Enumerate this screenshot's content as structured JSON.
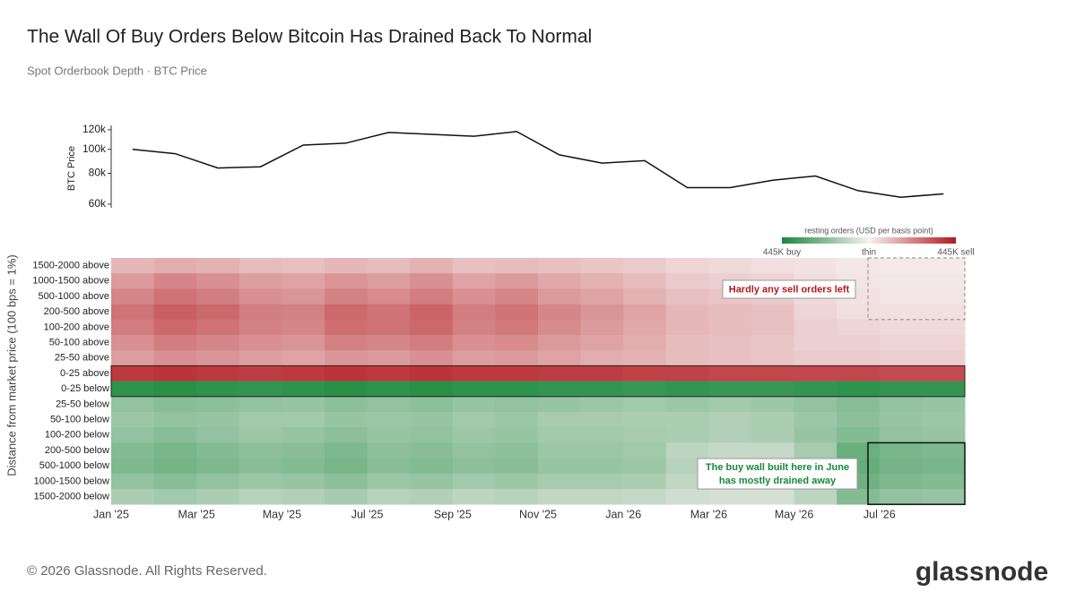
{
  "header": {
    "title": "The Wall Of Buy Orders Below Bitcoin Has Drained Back To Normal",
    "subtitle": "Spot Orderbook Depth · BTC Price"
  },
  "chart_data": [
    {
      "type": "line",
      "ylabel": "BTC Price",
      "color": "#111111",
      "log_scale": true,
      "ylim": [
        58000,
        125000
      ],
      "yticks": [
        {
          "value": 60000,
          "label": "60k"
        },
        {
          "value": 80000,
          "label": "80k"
        },
        {
          "value": 100000,
          "label": "100k"
        },
        {
          "value": 120000,
          "label": "120k"
        }
      ],
      "values": [
        100000,
        96000,
        84000,
        85000,
        104000,
        106000,
        117000,
        115000,
        113000,
        118000,
        95000,
        88000,
        90000,
        70000,
        70000,
        75000,
        78000,
        68000,
        64000,
        66000
      ]
    },
    {
      "type": "heatmap",
      "ylabel": "Distance from market price (100 bps = 1%)",
      "categories": [
        "Jan '25",
        null,
        "Mar '25",
        null,
        "May '25",
        null,
        "Jul '25",
        null,
        "Sep '25",
        null,
        "Nov '25",
        null,
        "Jan '26",
        null,
        "Mar '26",
        null,
        "May '26",
        null,
        "Jul '26",
        null
      ],
      "rows": [
        "1500-2000 above",
        "1000-1500 above",
        "500-1000 above",
        "200-500 above",
        "100-200 above",
        "50-100 above",
        "25-50 above",
        "0-25 above",
        "0-25 below",
        "25-50 below",
        "50-100 below",
        "100-200 below",
        "200-500 below",
        "500-1000 below",
        "1000-1500 below",
        "1500-2000 below"
      ],
      "colorbar": {
        "title": "resting orders (USD per basis point)",
        "colors": [
          "#17883a",
          "#f7f1f1",
          "#b3191e"
        ],
        "ticks": [
          {
            "value": -445000,
            "label": "445K buy"
          },
          {
            "value": 0,
            "label": "thin"
          },
          {
            "value": 445000,
            "label": "445K sell"
          }
        ]
      },
      "values": [
        [
          120000,
          140000,
          130000,
          110000,
          100000,
          120000,
          110000,
          130000,
          100000,
          110000,
          100000,
          90000,
          80000,
          60000,
          50000,
          40000,
          30000,
          20000,
          15000,
          15000
        ],
        [
          180000,
          220000,
          200000,
          170000,
          160000,
          190000,
          170000,
          200000,
          160000,
          180000,
          150000,
          130000,
          110000,
          80000,
          70000,
          60000,
          40000,
          25000,
          20000,
          20000
        ],
        [
          220000,
          260000,
          240000,
          200000,
          190000,
          230000,
          210000,
          240000,
          200000,
          220000,
          180000,
          160000,
          130000,
          100000,
          90000,
          80000,
          50000,
          30000,
          25000,
          25000
        ],
        [
          260000,
          300000,
          280000,
          240000,
          230000,
          280000,
          260000,
          290000,
          240000,
          260000,
          220000,
          190000,
          160000,
          120000,
          110000,
          100000,
          60000,
          40000,
          35000,
          35000
        ],
        [
          240000,
          280000,
          260000,
          230000,
          220000,
          270000,
          260000,
          280000,
          230000,
          250000,
          210000,
          180000,
          150000,
          120000,
          110000,
          100000,
          70000,
          60000,
          50000,
          50000
        ],
        [
          200000,
          240000,
          220000,
          200000,
          190000,
          230000,
          220000,
          240000,
          200000,
          210000,
          180000,
          160000,
          140000,
          110000,
          100000,
          90000,
          70000,
          70000,
          60000,
          60000
        ],
        [
          170000,
          200000,
          190000,
          170000,
          160000,
          190000,
          180000,
          200000,
          170000,
          180000,
          160000,
          140000,
          130000,
          110000,
          100000,
          90000,
          80000,
          80000,
          70000,
          70000
        ],
        [
          380000,
          390000,
          380000,
          370000,
          380000,
          390000,
          380000,
          390000,
          380000,
          380000,
          370000,
          370000,
          360000,
          360000,
          350000,
          350000,
          350000,
          350000,
          340000,
          340000
        ],
        [
          -400000,
          -410000,
          -400000,
          -390000,
          -400000,
          -410000,
          -400000,
          -410000,
          -400000,
          -400000,
          -390000,
          -390000,
          -380000,
          -390000,
          -380000,
          -380000,
          -390000,
          -400000,
          -390000,
          -390000
        ],
        [
          -200000,
          -220000,
          -210000,
          -200000,
          -190000,
          -210000,
          -200000,
          -210000,
          -190000,
          -200000,
          -190000,
          -180000,
          -170000,
          -180000,
          -170000,
          -180000,
          -200000,
          -220000,
          -200000,
          -190000
        ],
        [
          -180000,
          -200000,
          -190000,
          -170000,
          -170000,
          -190000,
          -180000,
          -190000,
          -170000,
          -180000,
          -160000,
          -160000,
          -150000,
          -150000,
          -140000,
          -150000,
          -180000,
          -210000,
          -190000,
          -180000
        ],
        [
          -200000,
          -220000,
          -200000,
          -180000,
          -190000,
          -210000,
          -190000,
          -200000,
          -180000,
          -190000,
          -170000,
          -170000,
          -160000,
          -150000,
          -140000,
          -150000,
          -190000,
          -230000,
          -200000,
          -190000
        ],
        [
          -230000,
          -250000,
          -230000,
          -210000,
          -220000,
          -240000,
          -210000,
          -220000,
          -200000,
          -210000,
          -180000,
          -180000,
          -170000,
          -120000,
          -100000,
          -100000,
          -160000,
          -280000,
          -250000,
          -240000
        ],
        [
          -240000,
          -260000,
          -240000,
          -220000,
          -230000,
          -250000,
          -220000,
          -230000,
          -210000,
          -220000,
          -190000,
          -190000,
          -180000,
          -130000,
          -110000,
          -110000,
          -170000,
          -290000,
          -260000,
          -250000
        ],
        [
          -200000,
          -220000,
          -200000,
          -180000,
          -190000,
          -210000,
          -180000,
          -190000,
          -170000,
          -180000,
          -160000,
          -160000,
          -150000,
          -110000,
          -90000,
          -90000,
          -150000,
          -270000,
          -240000,
          -230000
        ],
        [
          -150000,
          -170000,
          -150000,
          -130000,
          -140000,
          -160000,
          -130000,
          -140000,
          -120000,
          -130000,
          -110000,
          -110000,
          -100000,
          -80000,
          -70000,
          -70000,
          -120000,
          -230000,
          -200000,
          -190000
        ]
      ],
      "annotations": [
        "Hardly any sell orders left",
        "The buy wall built here in June",
        "has mostly drained away"
      ]
    }
  ],
  "footer": {
    "copyright": "© 2026 Glassnode. All Rights Reserved.",
    "logo": "glassnode"
  }
}
